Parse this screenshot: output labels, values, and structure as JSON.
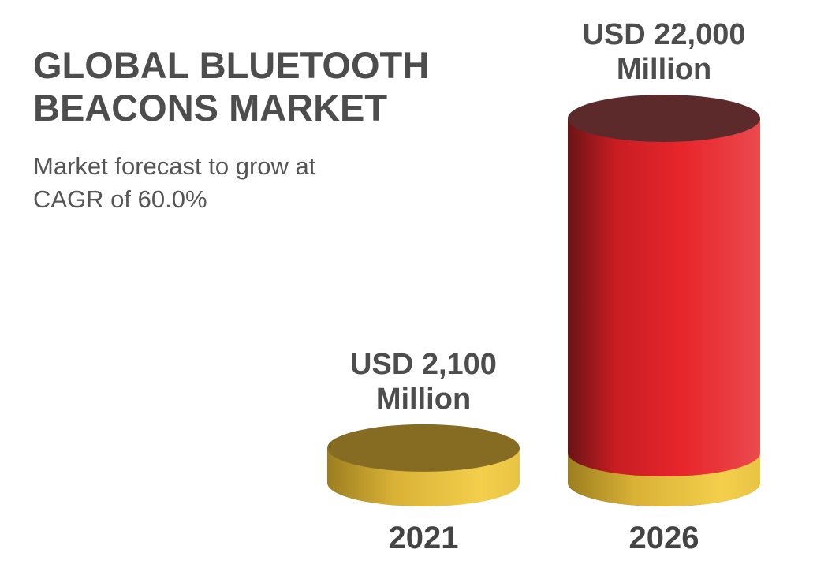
{
  "chart_data": {
    "type": "bar",
    "title": "GLOBAL BLUETOOTH BEACONS MARKET",
    "subtitle": "Market forecast to grow at CAGR of 60.0%",
    "categories": [
      "2021",
      "2026"
    ],
    "values": [
      2100,
      22000
    ],
    "value_labels": [
      "USD 2,100 Million",
      "USD 22,000 Million"
    ],
    "colors": [
      "#e9c13e",
      "#e3262c"
    ]
  }
}
